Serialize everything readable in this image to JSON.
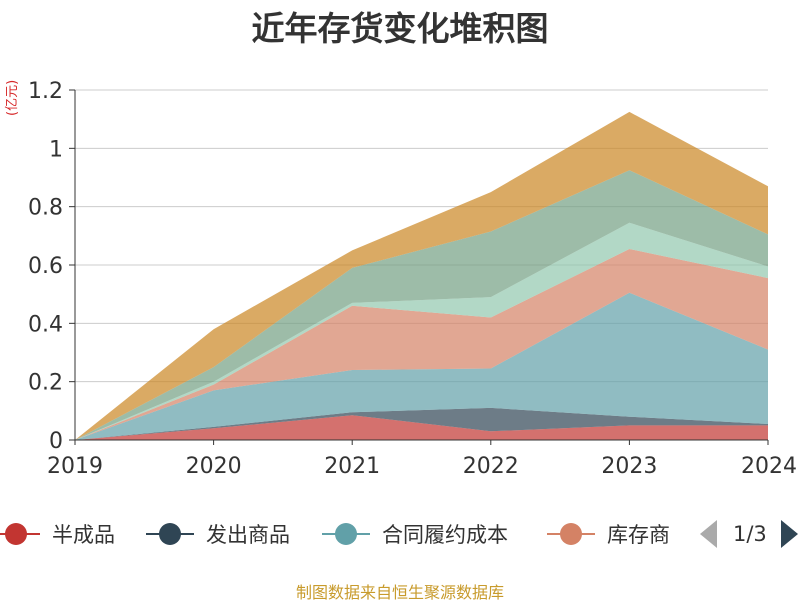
{
  "chart_data": {
    "type": "area",
    "stacked": true,
    "title": "近年存货变化堆积图",
    "y_unit": "(亿元)",
    "categories": [
      "2019",
      "2020",
      "2021",
      "2022",
      "2023",
      "2024"
    ],
    "ylim": [
      0,
      1.2
    ],
    "yticks": [
      0,
      0.2,
      0.4,
      0.6,
      0.8,
      1,
      1.2
    ],
    "ytick_labels": [
      "0",
      "0.2",
      "0.4",
      "0.6",
      "0.8",
      "1",
      "1.2"
    ],
    "grid": true,
    "series": [
      {
        "name": "半成品",
        "color": "#c23531",
        "values": [
          0,
          0.04,
          0.085,
          0.03,
          0.05,
          0.05
        ]
      },
      {
        "name": "发出商品",
        "color": "#2f4554",
        "values": [
          0,
          0.005,
          0.01,
          0.08,
          0.03,
          0.005
        ]
      },
      {
        "name": "合同履约成本",
        "color": "#61a0a8",
        "values": [
          0,
          0.125,
          0.145,
          0.135,
          0.425,
          0.255
        ]
      },
      {
        "color": "#d48265",
        "values": [
          0,
          0.02,
          0.22,
          0.175,
          0.15,
          0.245
        ]
      },
      {
        "color": "#91c7ae",
        "values": [
          0,
          0.01,
          0.01,
          0.07,
          0.09,
          0.04
        ]
      },
      {
        "color": "#749f83",
        "values": [
          0,
          0.05,
          0.12,
          0.225,
          0.18,
          0.11
        ]
      },
      {
        "color": "#ca8622",
        "values": [
          0,
          0.13,
          0.06,
          0.135,
          0.2,
          0.165
        ]
      }
    ]
  },
  "legend": {
    "items": [
      {
        "label": "半成品",
        "color": "#c23531"
      },
      {
        "label": "发出商品",
        "color": "#2f4554"
      },
      {
        "label": "合同履约成本",
        "color": "#61a0a8"
      },
      {
        "label": "库存商",
        "color": "#d48265"
      }
    ],
    "page_info": "1/3"
  },
  "source": "制图数据来自恒生聚源数据库"
}
